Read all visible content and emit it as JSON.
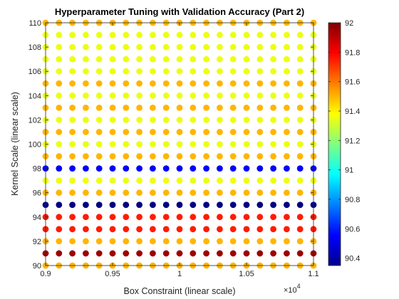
{
  "chart_data": {
    "type": "scatter",
    "title": "Hyperparameter Tuning with Validation Accuracy (Part 2)",
    "xlabel": "Box Constraint (linear scale)",
    "ylabel": "Kernel Scale (linear scale)",
    "x_exponent_label": "×10",
    "x_exponent_power": "4",
    "xlim": [
      9000,
      11000
    ],
    "ylim": [
      90,
      110
    ],
    "x_ticks": [
      9000,
      9500,
      10000,
      10500,
      11000
    ],
    "x_tick_labels": [
      "0.9",
      "0.95",
      "1",
      "1.05",
      "1.1"
    ],
    "y_ticks": [
      90,
      92,
      94,
      96,
      98,
      100,
      102,
      104,
      106,
      108,
      110
    ],
    "y_tick_labels": [
      "90",
      "92",
      "94",
      "96",
      "98",
      "100",
      "102",
      "104",
      "106",
      "108",
      "110"
    ],
    "x": [
      9000,
      9100,
      9200,
      9300,
      9400,
      9500,
      9600,
      9700,
      9800,
      9900,
      10000,
      10100,
      10200,
      10300,
      10400,
      10500,
      10600,
      10700,
      10800,
      10900,
      11000
    ],
    "y": [
      90,
      91,
      92,
      93,
      94,
      95,
      96,
      97,
      98,
      99,
      100,
      101,
      102,
      103,
      104,
      105,
      106,
      107,
      108,
      109,
      110
    ],
    "accuracy_by_y": [
      91.5,
      91.95,
      91.5,
      91.75,
      91.75,
      90.35,
      91.5,
      91.35,
      90.55,
      91.5,
      91.35,
      91.5,
      91.35,
      91.5,
      91.35,
      91.5,
      91.35,
      91.35,
      91.35,
      91.35,
      91.5
    ],
    "colorbar": {
      "min": 90.35,
      "max": 92,
      "ticks": [
        90.4,
        90.6,
        90.8,
        91,
        91.2,
        91.4,
        91.6,
        91.8,
        92
      ],
      "tick_labels": [
        "90.4",
        "90.6",
        "90.8",
        "91",
        "91.2",
        "91.4",
        "91.6",
        "91.8",
        "92"
      ],
      "colormap": "jet"
    },
    "grid": false,
    "legend": false
  }
}
